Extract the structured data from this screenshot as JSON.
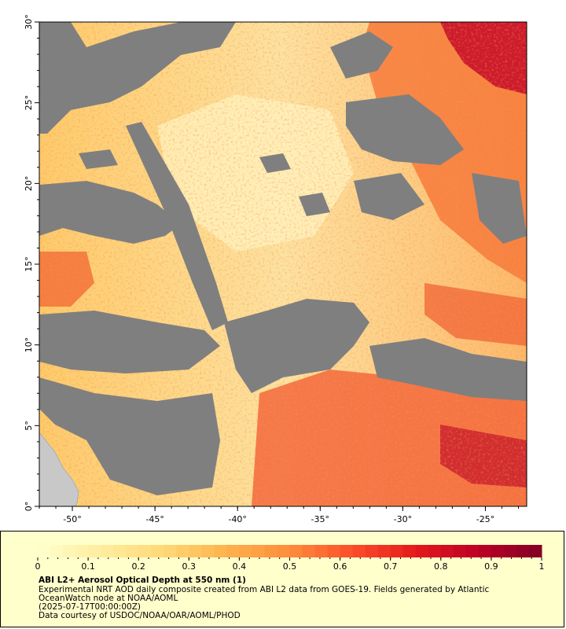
{
  "map": {
    "lat_axis": {
      "ticks": [
        "0°",
        "5°",
        "10°",
        "15°",
        "20°",
        "25°",
        "30°"
      ],
      "range": [
        0,
        30
      ]
    },
    "lon_axis": {
      "ticks": [
        "-50°",
        "-45°",
        "-40°",
        "-35°",
        "-30°",
        "-25°"
      ],
      "range": [
        -52,
        -22.5
      ]
    },
    "colors": {
      "no_data": "#7f7f7f",
      "land": "#c8c8c8",
      "frame": "#000000"
    }
  },
  "legend": {
    "scale_ticks": [
      "0",
      "0.1",
      "0.2",
      "0.3",
      "0.4",
      "0.5",
      "0.6",
      "0.7",
      "0.8",
      "0.9",
      "1"
    ],
    "scale_range": [
      0,
      1
    ],
    "colormap": [
      "#ffffcc",
      "#ffeda0",
      "#fed976",
      "#feb24c",
      "#fd8d3c",
      "#fc4e2a",
      "#e31a1c",
      "#bd0026",
      "#800026"
    ],
    "title": "ABI L2+ Aerosol Optical Depth at 550 nm (1)",
    "line1": "Experimental NRT AOD daily composite created from ABI L2 data from GOES-19. Fields generated by Atlantic",
    "line2": "OceanWatch node at NOAA/AOML",
    "line3": "(2025-07-17T00:00:00Z)",
    "line4": "Data courtesy of USDOC/NOAA/OAR/AOML/PHOD"
  }
}
